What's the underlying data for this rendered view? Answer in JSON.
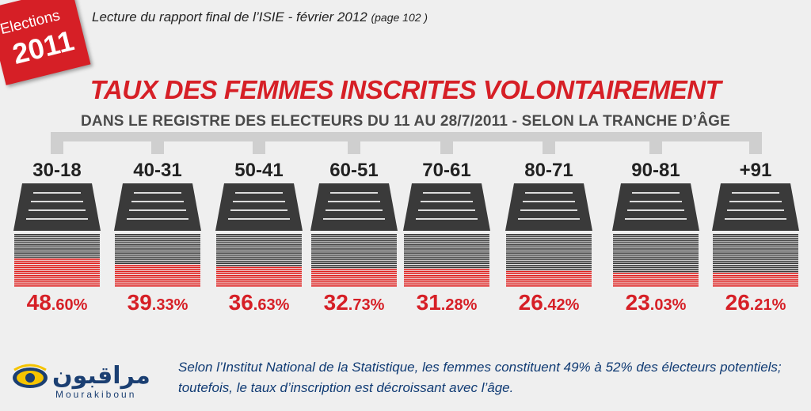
{
  "header": {
    "badge_line1": "Elections",
    "badge_line2": "2011",
    "source": "Lecture du rapport final de l’ISIE - février 2012",
    "source_page": "(page 102 )"
  },
  "title": "TAUX DES FEMMES INSCRITES VOLONTAIREMENT",
  "subtitle": "DANS LE REGISTRE DES ELECTEURS DU 11 AU 28/7/2011 - SELON LA TRANCHE D’ÂGE",
  "chart_data": {
    "type": "bar",
    "categories": [
      "30-18",
      "40-31",
      "50-41",
      "60-51",
      "70-61",
      "80-71",
      "90-81",
      "+91"
    ],
    "values": [
      48.6,
      39.33,
      36.63,
      32.73,
      31.28,
      26.42,
      23.03,
      26.21
    ],
    "value_labels": [
      {
        "big": "48",
        "small": ".60%"
      },
      {
        "big": "39",
        "small": ".33%"
      },
      {
        "big": "36",
        "small": ".63%"
      },
      {
        "big": "32",
        "small": ".73%"
      },
      {
        "big": "31",
        "small": ".28%"
      },
      {
        "big": "26",
        "small": ".42%"
      },
      {
        "big": "23",
        "small": ".03%"
      },
      {
        "big": "26",
        "small": ".21%"
      }
    ],
    "unit": "%"
  },
  "colors": {
    "accent": "#d61f26",
    "stack_dark": "#3a3a3a",
    "stack_line": "#9a9a9a",
    "stack_red": "#e0201f",
    "bracket": "#cfcfcf",
    "footer_text": "#0f3a73"
  },
  "logo": {
    "icon": "eye-icon",
    "name_ar": "مراقبون",
    "name_latin": "Mourakiboun"
  },
  "footer": {
    "text": "Selon l’Institut National de la Statistique, les femmes constituent 49% à 52% des électeurs potentiels; toutefois, le taux d’inscription est décroissant avec l’âge."
  }
}
